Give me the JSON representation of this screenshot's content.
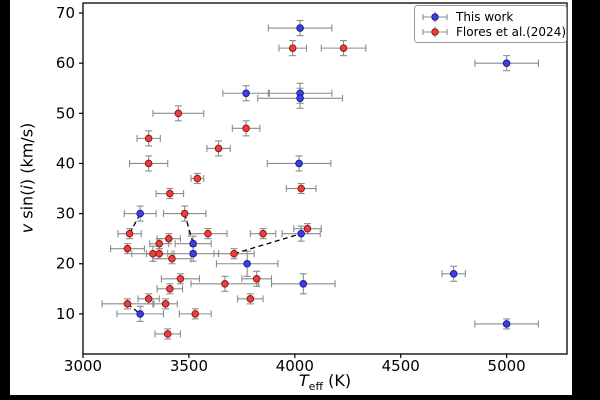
{
  "window": {
    "background_color": "#000000",
    "figure_background": "#ffffff"
  },
  "chart_data": {
    "type": "scatter",
    "title": "",
    "xlabel": "Teff (K)",
    "xlabel_parts": {
      "T": "T",
      "sub": "eff",
      "unit": " (K)"
    },
    "ylabel": "v sin(i) (km/s)",
    "ylabel_parts": {
      "v": "v",
      "sin": " sin(",
      "i": "i",
      "close": ") (km/s)"
    },
    "xlim": [
      3000,
      5285
    ],
    "ylim": [
      2,
      72
    ],
    "x_ticks": [
      "3000",
      "3500",
      "4000",
      "4500",
      "5000"
    ],
    "y_ticks": [
      "10",
      "20",
      "30",
      "40",
      "50",
      "60",
      "70"
    ],
    "grid": false,
    "error_bar_color": "#8c8c8c",
    "connector": {
      "style": "dashed",
      "color": "#000000",
      "pairs": [
        [
          [
            3220,
            26
          ],
          [
            3270,
            30
          ]
        ],
        [
          [
            3480,
            30
          ],
          [
            3520,
            24
          ]
        ],
        [
          [
            3713,
            22
          ],
          [
            4030,
            26
          ]
        ],
        [
          [
            3210,
            12
          ],
          [
            3270,
            10
          ]
        ]
      ]
    },
    "legend": {
      "position": "upper right"
    },
    "series": [
      {
        "name": "This work",
        "marker": "circle",
        "color": "#4040e0",
        "edge": "#1c1c96",
        "points": [
          [
            4025,
            67,
            150,
            1.5
          ],
          [
            5000,
            60,
            150,
            1.5
          ],
          [
            3770,
            54,
            110,
            1.5
          ],
          [
            4025,
            54,
            150,
            2
          ],
          [
            4025,
            53,
            200,
            2
          ],
          [
            4020,
            40,
            150,
            1.5
          ],
          [
            3270,
            30,
            75,
            1.5
          ],
          [
            3520,
            24,
            85,
            1.5
          ],
          [
            3520,
            22,
            120,
            1.5
          ],
          [
            4030,
            26,
            90,
            1.5
          ],
          [
            3775,
            20,
            145,
            2.5
          ],
          [
            4040,
            16,
            150,
            2
          ],
          [
            4750,
            18,
            55,
            1.5
          ],
          [
            3270,
            10,
            110,
            1.5
          ],
          [
            5000,
            8,
            150,
            1
          ]
        ]
      },
      {
        "name": "Flores et al.(2024)",
        "marker": "circle",
        "color": "#ef3d3d",
        "edge": "#8c1a1a",
        "points": [
          [
            3990,
            63,
            65,
            1.5
          ],
          [
            4230,
            63,
            105,
            1.5
          ],
          [
            3450,
            50,
            120,
            1.5
          ],
          [
            3770,
            47,
            65,
            1.5
          ],
          [
            3310,
            45,
            55,
            1.5
          ],
          [
            3640,
            43,
            55,
            1.5
          ],
          [
            3310,
            40,
            90,
            1.5
          ],
          [
            3540,
            37,
            30,
            1
          ],
          [
            3410,
            34,
            65,
            1
          ],
          [
            4030,
            35,
            70,
            1
          ],
          [
            3480,
            30,
            100,
            1.5
          ],
          [
            3220,
            26,
            55,
            1
          ],
          [
            3590,
            26,
            90,
            1
          ],
          [
            3850,
            26,
            60,
            1
          ],
          [
            4060,
            27,
            65,
            1
          ],
          [
            3405,
            25,
            55,
            1
          ],
          [
            3360,
            24,
            45,
            1
          ],
          [
            3210,
            23,
            80,
            1
          ],
          [
            3330,
            22,
            100,
            1.5
          ],
          [
            3360,
            22,
            60,
            1
          ],
          [
            3713,
            22,
            95,
            1
          ],
          [
            3420,
            21,
            90,
            1
          ],
          [
            3670,
            16,
            160,
            1.5
          ],
          [
            3820,
            17,
            70,
            1.5
          ],
          [
            3460,
            17,
            90,
            1
          ],
          [
            3410,
            15,
            60,
            1
          ],
          [
            3310,
            13,
            50,
            1
          ],
          [
            3790,
            13,
            60,
            1
          ],
          [
            3210,
            12,
            120,
            1
          ],
          [
            3390,
            12,
            55,
            1
          ],
          [
            3530,
            10,
            75,
            1
          ],
          [
            3400,
            6,
            60,
            1
          ]
        ]
      }
    ]
  }
}
